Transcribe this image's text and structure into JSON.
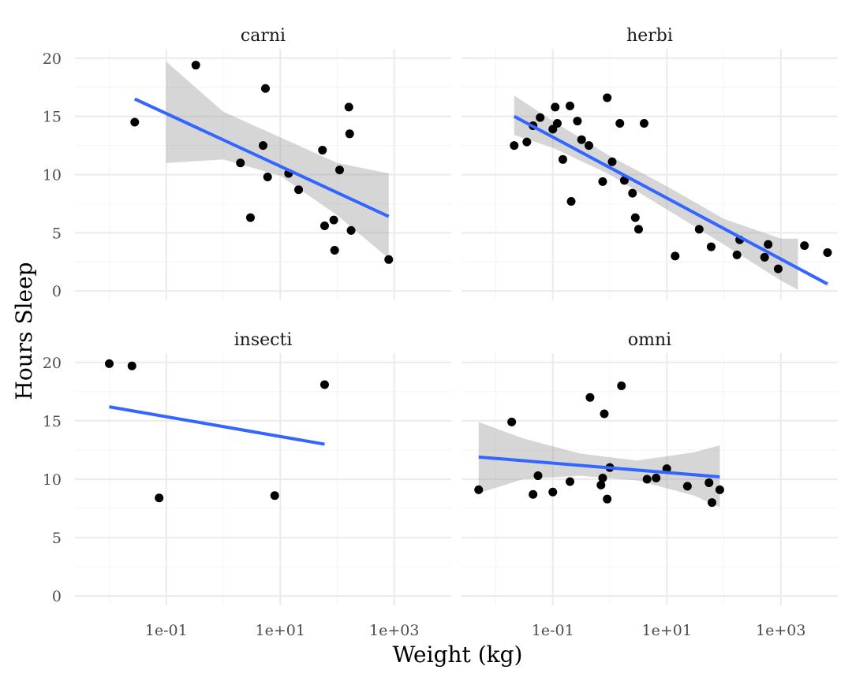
{
  "chart_data": {
    "type": "scatter",
    "xlabel": "Weight (kg)",
    "ylabel": "Hours Sleep",
    "x_scale": "log10",
    "xlim": [
      0.0025,
      10000
    ],
    "ylim": [
      -0.8,
      20.8
    ],
    "x_ticks": [
      0.1,
      10,
      1000
    ],
    "x_tick_labels": [
      "1e-01",
      "1e+01",
      "1e+03"
    ],
    "y_ticks": [
      0,
      5,
      10,
      15,
      20
    ],
    "y_tick_labels": [
      "0",
      "5",
      "10",
      "15",
      "20"
    ],
    "grid": true,
    "facets": [
      {
        "label": "carni",
        "points": [
          [
            0.028,
            14.5
          ],
          [
            0.33,
            19.4
          ],
          [
            2.0,
            11.0
          ],
          [
            3.0,
            6.3
          ],
          [
            5.0,
            12.5
          ],
          [
            5.5,
            17.4
          ],
          [
            6.0,
            9.8
          ],
          [
            14.0,
            10.1
          ],
          [
            21.0,
            8.7
          ],
          [
            55.0,
            12.1
          ],
          [
            60.0,
            5.6
          ],
          [
            87.0,
            6.1
          ],
          [
            90.0,
            3.5
          ],
          [
            110.0,
            10.4
          ],
          [
            160.0,
            15.8
          ],
          [
            165.0,
            13.5
          ],
          [
            175.0,
            5.2
          ],
          [
            800.0,
            2.7
          ]
        ],
        "fit": {
          "x": [
            0.028,
            800.0
          ],
          "y": [
            16.5,
            6.4
          ]
        },
        "band": {
          "x": [
            0.1,
            1,
            10,
            100,
            800
          ],
          "lower": [
            11.0,
            11.3,
            9.9,
            6.5,
            2.8
          ],
          "upper": [
            19.7,
            15.4,
            13.2,
            11.0,
            10.1
          ]
        }
      },
      {
        "label": "herbi",
        "points": [
          [
            0.021,
            12.5
          ],
          [
            0.035,
            12.8
          ],
          [
            0.045,
            14.2
          ],
          [
            0.06,
            14.9
          ],
          [
            0.1,
            13.9
          ],
          [
            0.11,
            15.8
          ],
          [
            0.12,
            14.4
          ],
          [
            0.15,
            11.3
          ],
          [
            0.2,
            15.9
          ],
          [
            0.21,
            7.7
          ],
          [
            0.27,
            14.6
          ],
          [
            0.32,
            13.0
          ],
          [
            0.43,
            12.5
          ],
          [
            0.75,
            9.4
          ],
          [
            0.9,
            16.6
          ],
          [
            1.1,
            11.1
          ],
          [
            1.5,
            14.4
          ],
          [
            1.8,
            9.5
          ],
          [
            2.5,
            8.4
          ],
          [
            2.8,
            6.3
          ],
          [
            3.2,
            5.3
          ],
          [
            4.0,
            14.4
          ],
          [
            14.0,
            3.0
          ],
          [
            37.0,
            5.3
          ],
          [
            60.0,
            3.8
          ],
          [
            170.0,
            3.1
          ],
          [
            190.0,
            4.4
          ],
          [
            520.0,
            2.9
          ],
          [
            600.0,
            4.0
          ],
          [
            900.0,
            1.9
          ],
          [
            2600.0,
            3.9
          ],
          [
            6600.0,
            3.3
          ]
        ],
        "fit": {
          "x": [
            0.021,
            6600.0
          ],
          "y": [
            15.0,
            0.6
          ]
        },
        "band": {
          "x": [
            0.021,
            0.1,
            1,
            10,
            100,
            1000,
            2000
          ],
          "lower": [
            13.4,
            12.3,
            10.0,
            7.0,
            4.0,
            0.9,
            0.1
          ],
          "upper": [
            16.8,
            14.6,
            11.6,
            9.0,
            6.2,
            4.5,
            4.5
          ]
        }
      },
      {
        "label": "insecti",
        "points": [
          [
            0.01,
            19.9
          ],
          [
            0.025,
            19.7
          ],
          [
            0.075,
            8.4
          ],
          [
            8.0,
            8.6
          ],
          [
            60.0,
            18.1
          ]
        ],
        "fit": {
          "x": [
            0.01,
            60.0
          ],
          "y": [
            16.2,
            13.0
          ]
        },
        "band": null
      },
      {
        "label": "omni",
        "points": [
          [
            0.005,
            9.1
          ],
          [
            0.019,
            14.9
          ],
          [
            0.045,
            8.7
          ],
          [
            0.055,
            10.3
          ],
          [
            0.1,
            8.9
          ],
          [
            0.2,
            9.8
          ],
          [
            0.45,
            17.0
          ],
          [
            0.7,
            9.5
          ],
          [
            0.75,
            10.1
          ],
          [
            0.8,
            15.6
          ],
          [
            0.9,
            8.3
          ],
          [
            1.0,
            11.0
          ],
          [
            1.6,
            18.0
          ],
          [
            4.5,
            10.0
          ],
          [
            6.5,
            10.1
          ],
          [
            10.0,
            10.9
          ],
          [
            23.0,
            9.4
          ],
          [
            55.0,
            9.7
          ],
          [
            62.0,
            8.0
          ],
          [
            85.0,
            9.1
          ]
        ],
        "fit": {
          "x": [
            0.005,
            85.0
          ],
          "y": [
            11.9,
            10.2
          ]
        },
        "band": {
          "x": [
            0.005,
            0.03,
            0.3,
            3,
            30,
            85
          ],
          "lower": [
            8.8,
            10.0,
            10.3,
            9.9,
            8.6,
            7.6
          ],
          "upper": [
            14.9,
            13.5,
            12.2,
            11.6,
            12.3,
            12.9
          ]
        }
      }
    ]
  }
}
